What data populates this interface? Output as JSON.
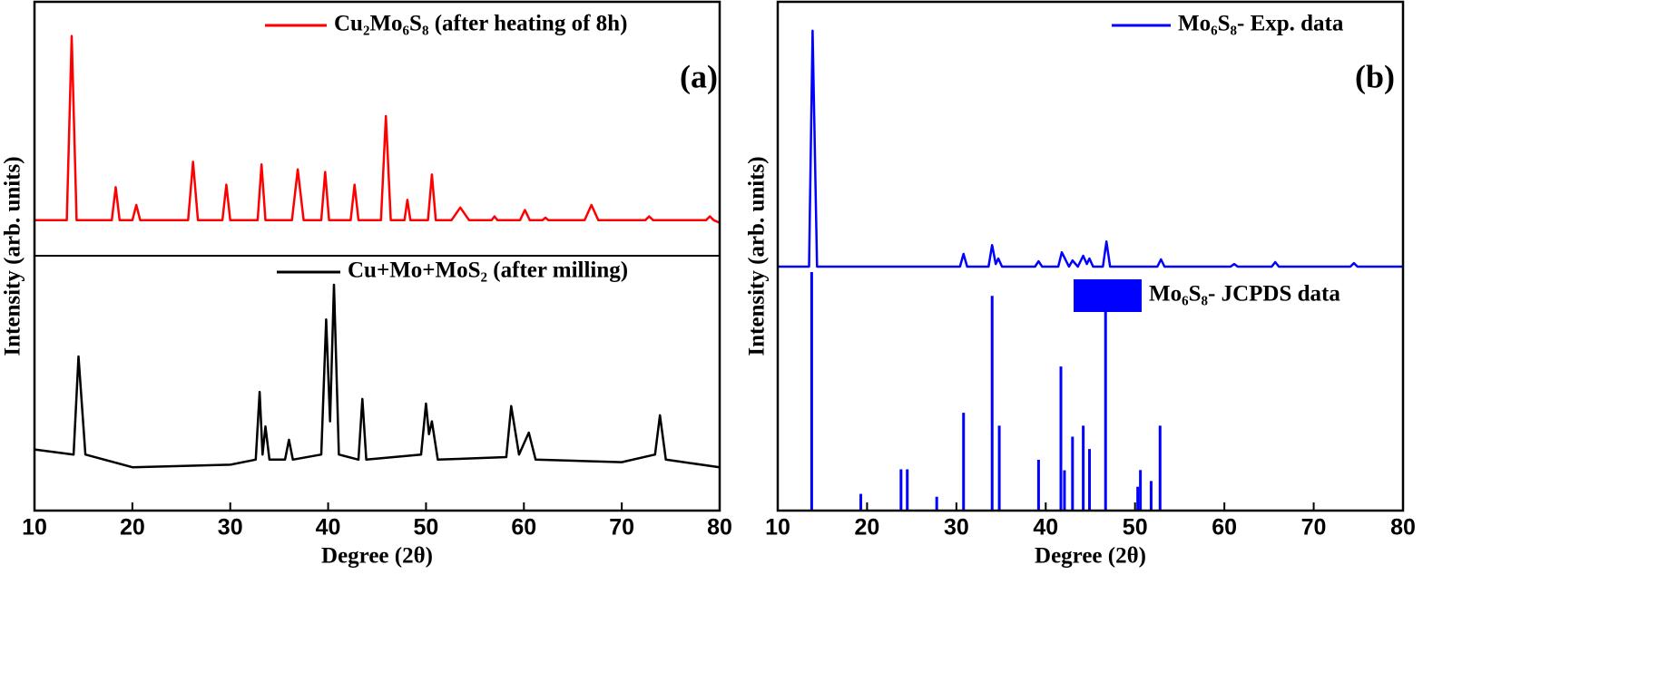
{
  "chart_data": [
    {
      "type": "line",
      "panel_label": "(a)",
      "xlabel": "Degree (2θ)",
      "ylabel": "Intensity (arb. units)",
      "xlim": [
        10,
        80
      ],
      "xticks": [
        10,
        20,
        30,
        40,
        50,
        60,
        70,
        80
      ],
      "divider": true,
      "panels": [
        {
          "type": "line",
          "ylim": [
            0,
            100
          ],
          "series": [
            {
              "name": "Cu₂Mo₆S₈ (after heating of 8h)",
              "color": "#ff0000",
              "x": [
                10,
                13.3,
                13.8,
                14.3,
                17.9,
                18.3,
                18.7,
                20.0,
                20.4,
                20.8,
                25.7,
                26.2,
                26.7,
                29.2,
                29.6,
                30.0,
                32.8,
                33.2,
                33.6,
                36.3,
                36.9,
                37.5,
                39.3,
                39.7,
                40.1,
                42.3,
                42.7,
                43.1,
                45.4,
                45.9,
                46.4,
                47.8,
                48.1,
                48.4,
                50.2,
                50.6,
                51.0,
                52.6,
                53.5,
                54.4,
                56.7,
                57.0,
                57.3,
                59.6,
                60.1,
                60.6,
                61.9,
                62.2,
                62.5,
                66.2,
                66.9,
                67.6,
                72.4,
                72.8,
                73.2,
                78.6,
                79.0,
                79.4,
                80
              ],
              "values": [
                14,
                14,
                86.5,
                14,
                14,
                27,
                14,
                14,
                20,
                14,
                14,
                37,
                14,
                14,
                28,
                14,
                14,
                36,
                14,
                14,
                34,
                14,
                14,
                33,
                14,
                14,
                28,
                14,
                14,
                55,
                14,
                14,
                22,
                14,
                14,
                32,
                14,
                14,
                19,
                14,
                14,
                15.5,
                14,
                14,
                18,
                14,
                14,
                15,
                14,
                14,
                20,
                14,
                14,
                15.5,
                14,
                14,
                15.5,
                14,
                13
              ]
            }
          ]
        },
        {
          "type": "line",
          "ylim": [
            0,
            100
          ],
          "series": [
            {
              "name": "Cu+Mo+MoS₂ (after milling)",
              "color": "#000000",
              "x": [
                10,
                14.0,
                14.5,
                15.2,
                20,
                30,
                32.6,
                33.0,
                33.3,
                33.6,
                34.0,
                35.6,
                36.0,
                36.4,
                39.3,
                39.8,
                40.2,
                40.6,
                41.1,
                43.1,
                43.5,
                43.9,
                49.5,
                50.0,
                50.3,
                50.6,
                51.2,
                58.2,
                58.7,
                59.5,
                60.5,
                61.2,
                70,
                73.4,
                73.9,
                74.5,
                80
              ],
              "values": [
                24,
                22,
                60.5,
                22,
                17,
                18,
                20,
                46.6,
                22,
                33,
                20,
                20,
                27.8,
                20,
                22,
                75,
                35,
                88.6,
                22,
                20,
                43.8,
                20,
                22,
                42,
                30,
                35,
                20,
                21,
                41,
                22,
                30.6,
                20,
                19,
                22,
                37.4,
                20,
                17
              ]
            }
          ]
        }
      ]
    },
    {
      "type": "line",
      "panel_label": "(b)",
      "xlabel": "Degree (2θ)",
      "ylabel": "Intensity (arb. units)",
      "xlim": [
        10,
        80
      ],
      "xticks": [
        10,
        20,
        30,
        40,
        50,
        60,
        70,
        80
      ],
      "divider": false,
      "panels": [
        {
          "type": "line",
          "ylim": [
            0,
            100
          ],
          "series": [
            {
              "name": "Mo₆S₈- Exp. data",
              "color": "#0000ff",
              "x": [
                10,
                13.5,
                13.9,
                14.4,
                30.4,
                30.8,
                31.2,
                33.6,
                34.0,
                34.4,
                34.7,
                35.1,
                38.8,
                39.2,
                39.6,
                41.4,
                41.8,
                42.6,
                43.0,
                43.6,
                44.2,
                44.6,
                44.9,
                45.3,
                46.4,
                46.8,
                47.2,
                52.5,
                52.9,
                53.3,
                60.7,
                61.1,
                61.5,
                65.3,
                65.7,
                66.1,
                74.1,
                74.5,
                74.9,
                80
              ],
              "values": [
                2,
                2,
                89.3,
                2,
                2,
                6.7,
                2,
                2,
                10,
                3,
                5,
                2,
                2,
                4,
                2,
                2,
                7.3,
                2,
                4.3,
                2,
                6,
                3,
                5,
                2,
                2,
                11.3,
                2,
                2,
                4.7,
                2,
                2,
                3,
                2,
                2,
                3.7,
                2,
                2,
                3.3,
                2,
                2
              ]
            }
          ]
        },
        {
          "type": "stem",
          "ylim": [
            0,
            100
          ],
          "series": [
            {
              "name": "Mo₆S₈- JCPDS data",
              "color": "#0000ff",
              "x": [
                13.8,
                19.3,
                23.8,
                24.5,
                27.8,
                30.8,
                34.0,
                34.8,
                39.2,
                41.7,
                42.1,
                43.0,
                44.2,
                44.9,
                46.7,
                50.3,
                50.6,
                51.8,
                52.8
              ],
              "values": [
                100,
                7,
                17.3,
                17.3,
                5.8,
                41,
                90,
                35.6,
                21.3,
                60.4,
                16.9,
                31,
                35.6,
                25.8,
                95,
                10,
                17,
                12.4,
                35.6
              ]
            }
          ]
        }
      ]
    }
  ]
}
